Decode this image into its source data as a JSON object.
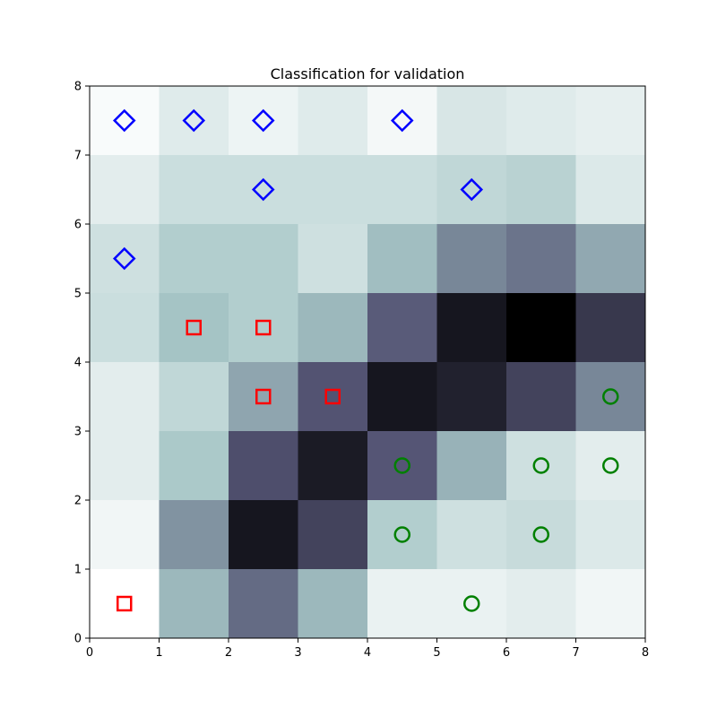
{
  "chart_data": {
    "type": "heatmap",
    "title": "Classification for validation",
    "xlabel": "",
    "ylabel": "",
    "xlim": [
      0,
      8
    ],
    "ylim": [
      0,
      8
    ],
    "xticks": [
      "0",
      "1",
      "2",
      "3",
      "4",
      "5",
      "6",
      "7",
      "8"
    ],
    "yticks": [
      "0",
      "1",
      "2",
      "3",
      "4",
      "5",
      "6",
      "7",
      "8"
    ],
    "grid": false,
    "colormap": "bone_r",
    "cells": [
      [
        0.0,
        0.3,
        0.55,
        0.3,
        0.06,
        0.06,
        0.08,
        0.04
      ],
      [
        0.04,
        0.42,
        0.9,
        0.7,
        0.22,
        0.14,
        0.16,
        0.1
      ],
      [
        0.08,
        0.24,
        0.65,
        0.88,
        0.62,
        0.32,
        0.14,
        0.08
      ],
      [
        0.08,
        0.18,
        0.36,
        0.63,
        0.9,
        0.85,
        0.7,
        0.46
      ],
      [
        0.15,
        0.26,
        0.22,
        0.3,
        0.6,
        0.9,
        1.0,
        0.75
      ],
      [
        0.14,
        0.22,
        0.22,
        0.14,
        0.28,
        0.46,
        0.52,
        0.35
      ],
      [
        0.08,
        0.15,
        0.15,
        0.15,
        0.15,
        0.18,
        0.2,
        0.1
      ],
      [
        0.02,
        0.09,
        0.05,
        0.09,
        0.03,
        0.11,
        0.09,
        0.07
      ]
    ],
    "marker_classes": [
      {
        "marker": "diamond",
        "color": "#0000ff",
        "points": [
          [
            0.5,
            7.5
          ],
          [
            1.5,
            7.5
          ],
          [
            2.5,
            7.5
          ],
          [
            4.5,
            7.5
          ],
          [
            2.5,
            6.5
          ],
          [
            5.5,
            6.5
          ],
          [
            0.5,
            5.5
          ]
        ]
      },
      {
        "marker": "square",
        "color": "#ff0000",
        "points": [
          [
            1.5,
            4.5
          ],
          [
            2.5,
            4.5
          ],
          [
            2.5,
            3.5
          ],
          [
            3.5,
            3.5
          ],
          [
            0.5,
            0.5
          ]
        ]
      },
      {
        "marker": "circle",
        "color": "#008000",
        "points": [
          [
            7.5,
            3.5
          ],
          [
            4.5,
            2.5
          ],
          [
            6.5,
            2.5
          ],
          [
            7.5,
            2.5
          ],
          [
            4.5,
            1.5
          ],
          [
            6.5,
            1.5
          ],
          [
            5.5,
            0.5
          ]
        ]
      }
    ]
  }
}
